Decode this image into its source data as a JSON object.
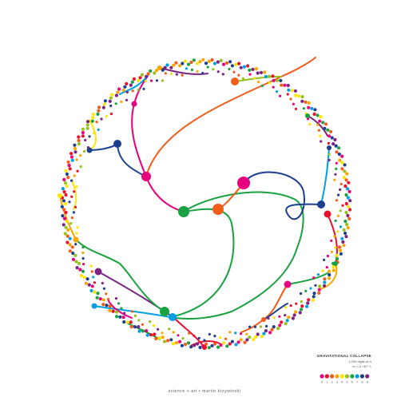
{
  "legend": {
    "title": "GRAVITATIONAL COLLAPSE",
    "subtitle": "1,000 digits of π",
    "formula": "m = (1−d)^−1"
  },
  "credit": "science + art • martin krzywinski",
  "digit_colors": [
    "#e6007e",
    "#e8112d",
    "#f25c19",
    "#f7a600",
    "#ffe500",
    "#95c11f",
    "#1aa140",
    "#009fe3",
    "#1d3f8f",
    "#7b2482"
  ],
  "digit_labels": [
    "0",
    "1",
    "2",
    "3",
    "4",
    "5",
    "6",
    "7",
    "8",
    "9"
  ]
}
